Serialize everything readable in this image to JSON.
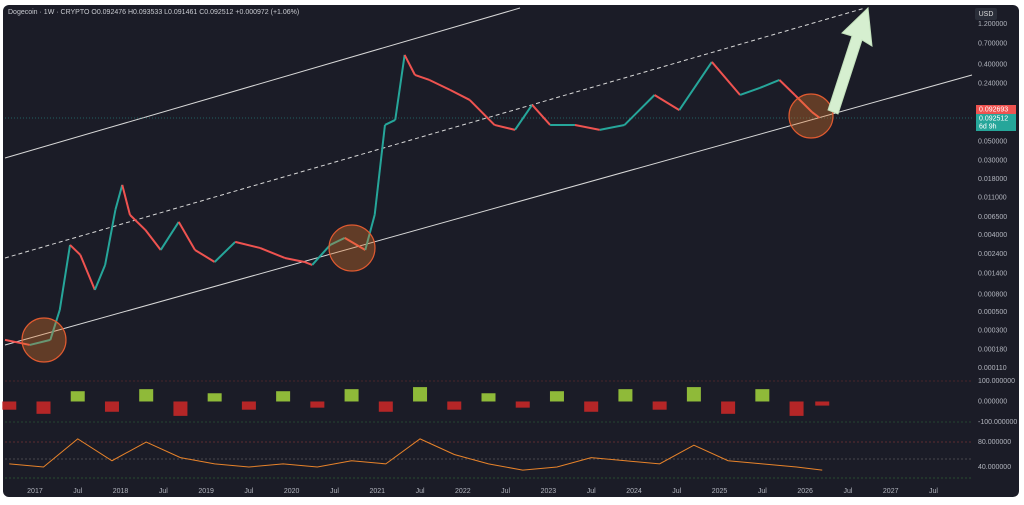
{
  "chart_data": [
    {
      "type": "candle-line",
      "title": "Dogecoin · 1W · CRYPTO  O0.092476  H0.093533  L0.091461  C0.092512  +0.000972 (+1.06%)",
      "currency": "USD",
      "log_scale": true,
      "up_color": "#26a69a",
      "down_color": "#ef5350",
      "last_price_labels": [
        "0.092693",
        "0.092512"
      ],
      "countdown": "6d 9h",
      "x": [
        2016.65,
        2016.94,
        2017.18,
        2017.29,
        2017.41,
        2017.53,
        2017.7,
        2017.82,
        2017.94,
        2018.02,
        2018.11,
        2018.29,
        2018.47,
        2018.68,
        2018.87,
        2019.1,
        2019.34,
        2019.63,
        2019.92,
        2020.15,
        2020.24,
        2020.45,
        2020.62,
        2020.86,
        2020.97,
        2021.09,
        2021.21,
        2021.32,
        2021.44,
        2021.61,
        2021.85,
        2022.08,
        2022.37,
        2022.61,
        2022.81,
        2023.02,
        2023.31,
        2023.6,
        2023.89,
        2024.24,
        2024.53,
        2024.91,
        2025.24,
        2025.47,
        2025.7,
        2025.88,
        2026.08,
        2026.17
      ],
      "values": [
        0.000235,
        0.000205,
        0.000235,
        0.000528,
        0.00306,
        0.00234,
        0.000908,
        0.00178,
        0.00789,
        0.0155,
        0.00689,
        0.00459,
        0.00267,
        0.0057,
        0.00267,
        0.00193,
        0.00332,
        0.00282,
        0.00215,
        0.00193,
        0.00178,
        0.00306,
        0.0037,
        0.00267,
        0.00689,
        0.0783,
        0.0897,
        0.52,
        0.303,
        0.264,
        0.202,
        0.154,
        0.0783,
        0.0686,
        0.135,
        0.0783,
        0.0783,
        0.0686,
        0.0783,
        0.176,
        0.117,
        0.43,
        0.176,
        0.213,
        0.264,
        0.176,
        0.111,
        0.0948
      ],
      "xlim": [
        2016.65,
        2027.95
      ],
      "ylim": [
        8.39e-05,
        1.75
      ],
      "xticks": [
        {
          "value": 2017,
          "label": "2017"
        },
        {
          "value": 2017.5,
          "label": "Jul"
        },
        {
          "value": 2018,
          "label": "2018"
        },
        {
          "value": 2018.5,
          "label": "Jul"
        },
        {
          "value": 2019,
          "label": "2019"
        },
        {
          "value": 2019.5,
          "label": "Jul"
        },
        {
          "value": 2020,
          "label": "2020"
        },
        {
          "value": 2020.5,
          "label": "Jul"
        },
        {
          "value": 2021,
          "label": "2021"
        },
        {
          "value": 2021.5,
          "label": "Jul"
        },
        {
          "value": 2022,
          "label": "2022"
        },
        {
          "value": 2022.5,
          "label": "Jul"
        },
        {
          "value": 2023,
          "label": "2023"
        },
        {
          "value": 2023.5,
          "label": "Jul"
        },
        {
          "value": 2024,
          "label": "2024"
        },
        {
          "value": 2024.5,
          "label": "Jul"
        },
        {
          "value": 2025,
          "label": "2025"
        },
        {
          "value": 2025.5,
          "label": "Jul"
        },
        {
          "value": 2026,
          "label": "2026"
        },
        {
          "value": 2026.5,
          "label": "Jul"
        },
        {
          "value": 2027,
          "label": "2027"
        },
        {
          "value": 2027.5,
          "label": "Jul"
        }
      ],
      "yticks": [
        {
          "value": 1.2,
          "label": "1.200000"
        },
        {
          "value": 0.7,
          "label": "0.700000"
        },
        {
          "value": 0.4,
          "label": "0.400000"
        },
        {
          "value": 0.24,
          "label": "0.240000"
        },
        {
          "value": 0.05,
          "label": "0.050000"
        },
        {
          "value": 0.03,
          "label": "0.030000"
        },
        {
          "value": 0.018,
          "label": "0.018000"
        },
        {
          "value": 0.011,
          "label": "0.011000"
        },
        {
          "value": 0.0065,
          "label": "0.006500"
        },
        {
          "value": 0.004,
          "label": "0.004000"
        },
        {
          "value": 0.0024,
          "label": "0.002400"
        },
        {
          "value": 0.0014,
          "label": "0.001400"
        },
        {
          "value": 0.0008,
          "label": "0.000800"
        },
        {
          "value": 0.0005,
          "label": "0.000500"
        },
        {
          "value": 0.0003,
          "label": "0.000300"
        },
        {
          "value": 0.00018,
          "label": "0.000180"
        },
        {
          "value": 0.00011,
          "label": "0.000110"
        }
      ]
    },
    {
      "type": "histogram-osc",
      "up_color": "#9ccc3c",
      "down_color": "#c62828",
      "x": [
        2016.7,
        2017.1,
        2017.5,
        2017.9,
        2018.3,
        2018.7,
        2019.1,
        2019.5,
        2019.9,
        2020.3,
        2020.7,
        2021.1,
        2021.5,
        2021.9,
        2022.3,
        2022.7,
        2023.1,
        2023.5,
        2023.9,
        2024.3,
        2024.7,
        2025.1,
        2025.5,
        2025.9,
        2026.2
      ],
      "values": [
        -40,
        -60,
        50,
        -50,
        60,
        -70,
        40,
        -40,
        50,
        -30,
        60,
        -50,
        70,
        -40,
        40,
        -30,
        50,
        -50,
        60,
        -40,
        70,
        -60,
        60,
        -70,
        -20
      ],
      "xlim": [
        2016.65,
        2027.95
      ],
      "ylim": [
        -129,
        124
      ],
      "yticks": [
        {
          "value": 100,
          "label": "100.000000"
        },
        {
          "value": 0,
          "label": "0.000000"
        },
        {
          "value": -100,
          "label": "-100.000000"
        }
      ]
    },
    {
      "type": "line-osc",
      "color": "#e8832a",
      "x": [
        2016.7,
        2017.1,
        2017.5,
        2017.9,
        2018.3,
        2018.7,
        2019.1,
        2019.5,
        2019.9,
        2020.3,
        2020.7,
        2021.1,
        2021.5,
        2021.9,
        2022.3,
        2022.7,
        2023.1,
        2023.5,
        2023.9,
        2024.3,
        2024.7,
        2025.1,
        2025.5,
        2025.9,
        2026.2
      ],
      "values": [
        45,
        40,
        85,
        50,
        80,
        55,
        45,
        40,
        45,
        40,
        50,
        45,
        85,
        60,
        45,
        35,
        40,
        55,
        50,
        45,
        75,
        50,
        45,
        40,
        35
      ],
      "xlim": [
        2016.65,
        2027.95
      ],
      "ylim": [
        16,
        99.2
      ],
      "yticks": [
        {
          "value": 80,
          "label": "80.000000"
        },
        {
          "value": 40,
          "label": "40.000000"
        }
      ]
    }
  ]
}
